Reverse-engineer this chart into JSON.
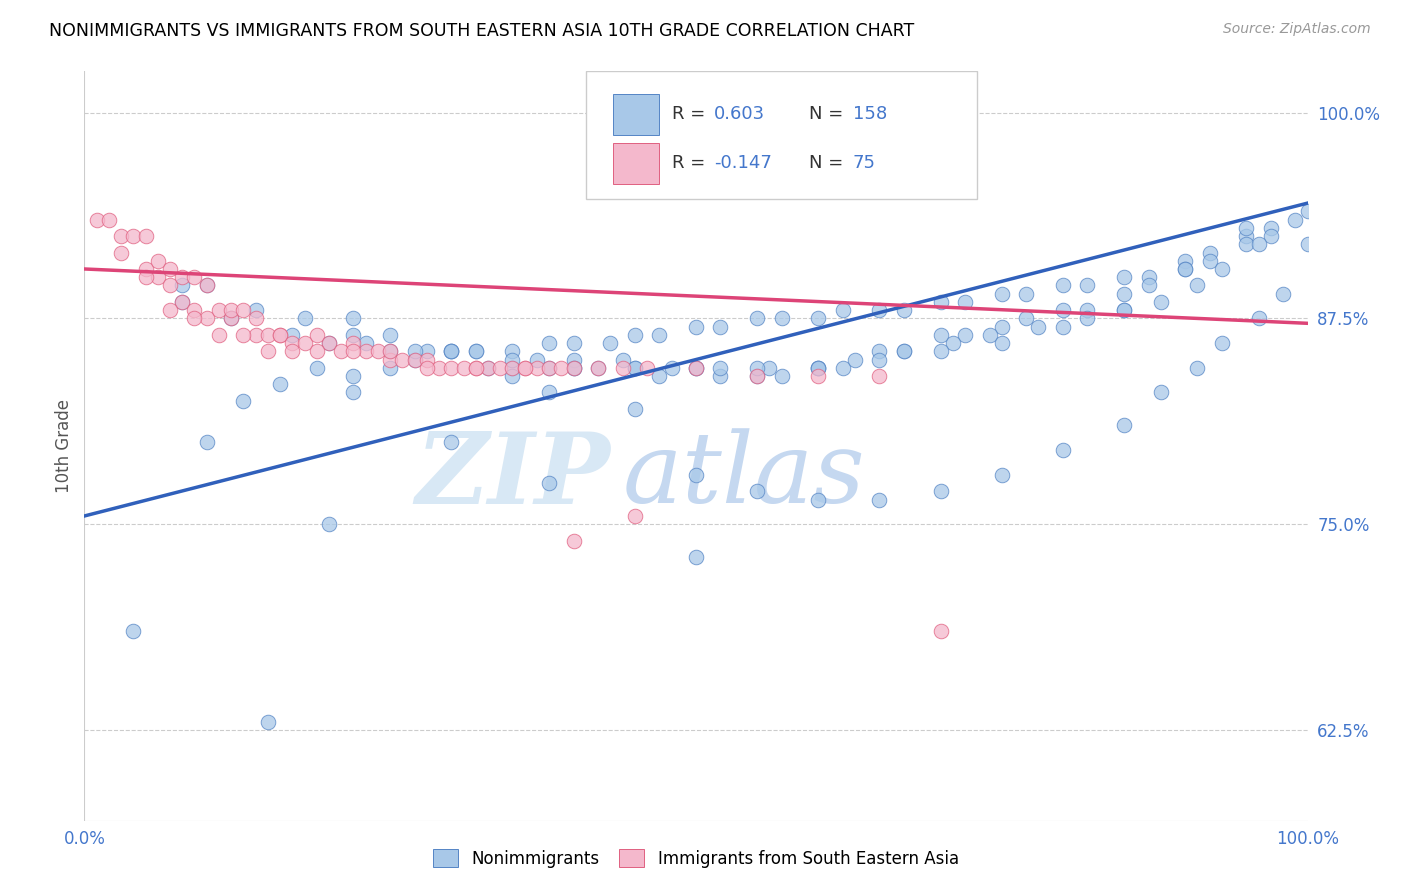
{
  "title": "NONIMMIGRANTS VS IMMIGRANTS FROM SOUTH EASTERN ASIA 10TH GRADE CORRELATION CHART",
  "source": "Source: ZipAtlas.com",
  "ylabel": "10th Grade",
  "right_yticks": [
    0.625,
    0.75,
    0.875,
    1.0
  ],
  "right_ytick_labels": [
    "62.5%",
    "75.0%",
    "87.5%",
    "100.0%"
  ],
  "blue_color": "#a8c8e8",
  "pink_color": "#f4b8cc",
  "blue_edge_color": "#5585c5",
  "pink_edge_color": "#e06080",
  "blue_line_color": "#3060bb",
  "pink_line_color": "#dd4477",
  "watermark_zip": "ZIP",
  "watermark_atlas": "atlas",
  "xlim": [
    0.0,
    1.0
  ],
  "ylim": [
    0.57,
    1.025
  ],
  "blue_r": 0.603,
  "blue_n": 158,
  "pink_r": -0.147,
  "pink_n": 75,
  "blue_line_x0": 0.0,
  "blue_line_y0": 0.755,
  "blue_line_x1": 1.0,
  "blue_line_y1": 0.945,
  "pink_line_x0": 0.0,
  "pink_line_y0": 0.905,
  "pink_line_x1": 1.0,
  "pink_line_y1": 0.872,
  "blue_scatter_x": [
    0.04,
    0.1,
    0.13,
    0.16,
    0.19,
    0.22,
    0.25,
    0.27,
    0.3,
    0.32,
    0.35,
    0.38,
    0.4,
    0.43,
    0.45,
    0.47,
    0.5,
    0.52,
    0.55,
    0.57,
    0.6,
    0.62,
    0.65,
    0.67,
    0.7,
    0.72,
    0.75,
    0.77,
    0.8,
    0.82,
    0.85,
    0.87,
    0.9,
    0.92,
    0.95,
    0.97,
    1.0,
    0.22,
    0.22,
    0.25,
    0.28,
    0.3,
    0.33,
    0.35,
    0.35,
    0.38,
    0.4,
    0.42,
    0.45,
    0.47,
    0.5,
    0.52,
    0.55,
    0.57,
    0.6,
    0.62,
    0.65,
    0.67,
    0.7,
    0.72,
    0.75,
    0.77,
    0.8,
    0.82,
    0.85,
    0.87,
    0.9,
    0.92,
    0.95,
    0.97,
    1.0,
    0.08,
    0.12,
    0.17,
    0.2,
    0.23,
    0.27,
    0.32,
    0.37,
    0.4,
    0.44,
    0.48,
    0.52,
    0.56,
    0.6,
    0.63,
    0.67,
    0.71,
    0.74,
    0.78,
    0.82,
    0.85,
    0.88,
    0.91,
    0.93,
    0.96,
    0.99,
    0.1,
    0.14,
    0.18,
    0.25,
    0.3,
    0.35,
    0.4,
    0.45,
    0.5,
    0.55,
    0.6,
    0.65,
    0.7,
    0.75,
    0.8,
    0.85,
    0.9,
    0.95,
    0.38,
    0.45,
    0.5,
    0.55,
    0.6,
    0.65,
    0.7,
    0.75,
    0.8,
    0.85,
    0.88,
    0.91,
    0.93,
    0.96,
    0.98,
    0.3,
    0.2,
    0.15,
    0.08,
    0.5,
    0.38,
    0.22
  ],
  "blue_scatter_y": [
    0.685,
    0.8,
    0.825,
    0.835,
    0.845,
    0.84,
    0.845,
    0.85,
    0.855,
    0.855,
    0.855,
    0.86,
    0.86,
    0.86,
    0.865,
    0.865,
    0.87,
    0.87,
    0.875,
    0.875,
    0.875,
    0.88,
    0.88,
    0.88,
    0.885,
    0.885,
    0.89,
    0.89,
    0.895,
    0.895,
    0.9,
    0.9,
    0.91,
    0.915,
    0.925,
    0.93,
    0.92,
    0.875,
    0.865,
    0.855,
    0.855,
    0.855,
    0.845,
    0.845,
    0.84,
    0.845,
    0.845,
    0.845,
    0.845,
    0.84,
    0.845,
    0.84,
    0.84,
    0.84,
    0.845,
    0.845,
    0.855,
    0.855,
    0.865,
    0.865,
    0.87,
    0.875,
    0.88,
    0.88,
    0.89,
    0.895,
    0.905,
    0.91,
    0.92,
    0.925,
    0.94,
    0.885,
    0.875,
    0.865,
    0.86,
    0.86,
    0.855,
    0.855,
    0.85,
    0.85,
    0.85,
    0.845,
    0.845,
    0.845,
    0.845,
    0.85,
    0.855,
    0.86,
    0.865,
    0.87,
    0.875,
    0.88,
    0.885,
    0.895,
    0.905,
    0.92,
    0.935,
    0.895,
    0.88,
    0.875,
    0.865,
    0.855,
    0.85,
    0.845,
    0.845,
    0.845,
    0.845,
    0.845,
    0.85,
    0.855,
    0.86,
    0.87,
    0.88,
    0.905,
    0.93,
    0.83,
    0.82,
    0.78,
    0.77,
    0.765,
    0.765,
    0.77,
    0.78,
    0.795,
    0.81,
    0.83,
    0.845,
    0.86,
    0.875,
    0.89,
    0.8,
    0.75,
    0.63,
    0.895,
    0.73,
    0.775,
    0.83
  ],
  "pink_scatter_x": [
    0.01,
    0.02,
    0.03,
    0.04,
    0.05,
    0.05,
    0.06,
    0.06,
    0.07,
    0.07,
    0.08,
    0.08,
    0.09,
    0.09,
    0.1,
    0.1,
    0.11,
    0.12,
    0.12,
    0.13,
    0.14,
    0.14,
    0.15,
    0.16,
    0.16,
    0.17,
    0.18,
    0.19,
    0.2,
    0.21,
    0.22,
    0.23,
    0.24,
    0.25,
    0.26,
    0.27,
    0.28,
    0.29,
    0.3,
    0.31,
    0.32,
    0.33,
    0.34,
    0.35,
    0.36,
    0.37,
    0.38,
    0.39,
    0.4,
    0.42,
    0.44,
    0.46,
    0.5,
    0.55,
    0.6,
    0.65,
    0.7,
    0.03,
    0.05,
    0.07,
    0.09,
    0.11,
    0.13,
    0.15,
    0.17,
    0.19,
    0.22,
    0.25,
    0.28,
    0.32,
    0.36,
    0.4,
    0.45
  ],
  "pink_scatter_y": [
    0.935,
    0.935,
    0.925,
    0.925,
    0.925,
    0.905,
    0.91,
    0.9,
    0.905,
    0.895,
    0.9,
    0.885,
    0.9,
    0.88,
    0.895,
    0.875,
    0.88,
    0.875,
    0.88,
    0.88,
    0.875,
    0.865,
    0.865,
    0.865,
    0.865,
    0.86,
    0.86,
    0.865,
    0.86,
    0.855,
    0.86,
    0.855,
    0.855,
    0.85,
    0.85,
    0.85,
    0.85,
    0.845,
    0.845,
    0.845,
    0.845,
    0.845,
    0.845,
    0.845,
    0.845,
    0.845,
    0.845,
    0.845,
    0.845,
    0.845,
    0.845,
    0.845,
    0.845,
    0.84,
    0.84,
    0.84,
    0.685,
    0.915,
    0.9,
    0.88,
    0.875,
    0.865,
    0.865,
    0.855,
    0.855,
    0.855,
    0.855,
    0.855,
    0.845,
    0.845,
    0.845,
    0.74,
    0.755
  ]
}
